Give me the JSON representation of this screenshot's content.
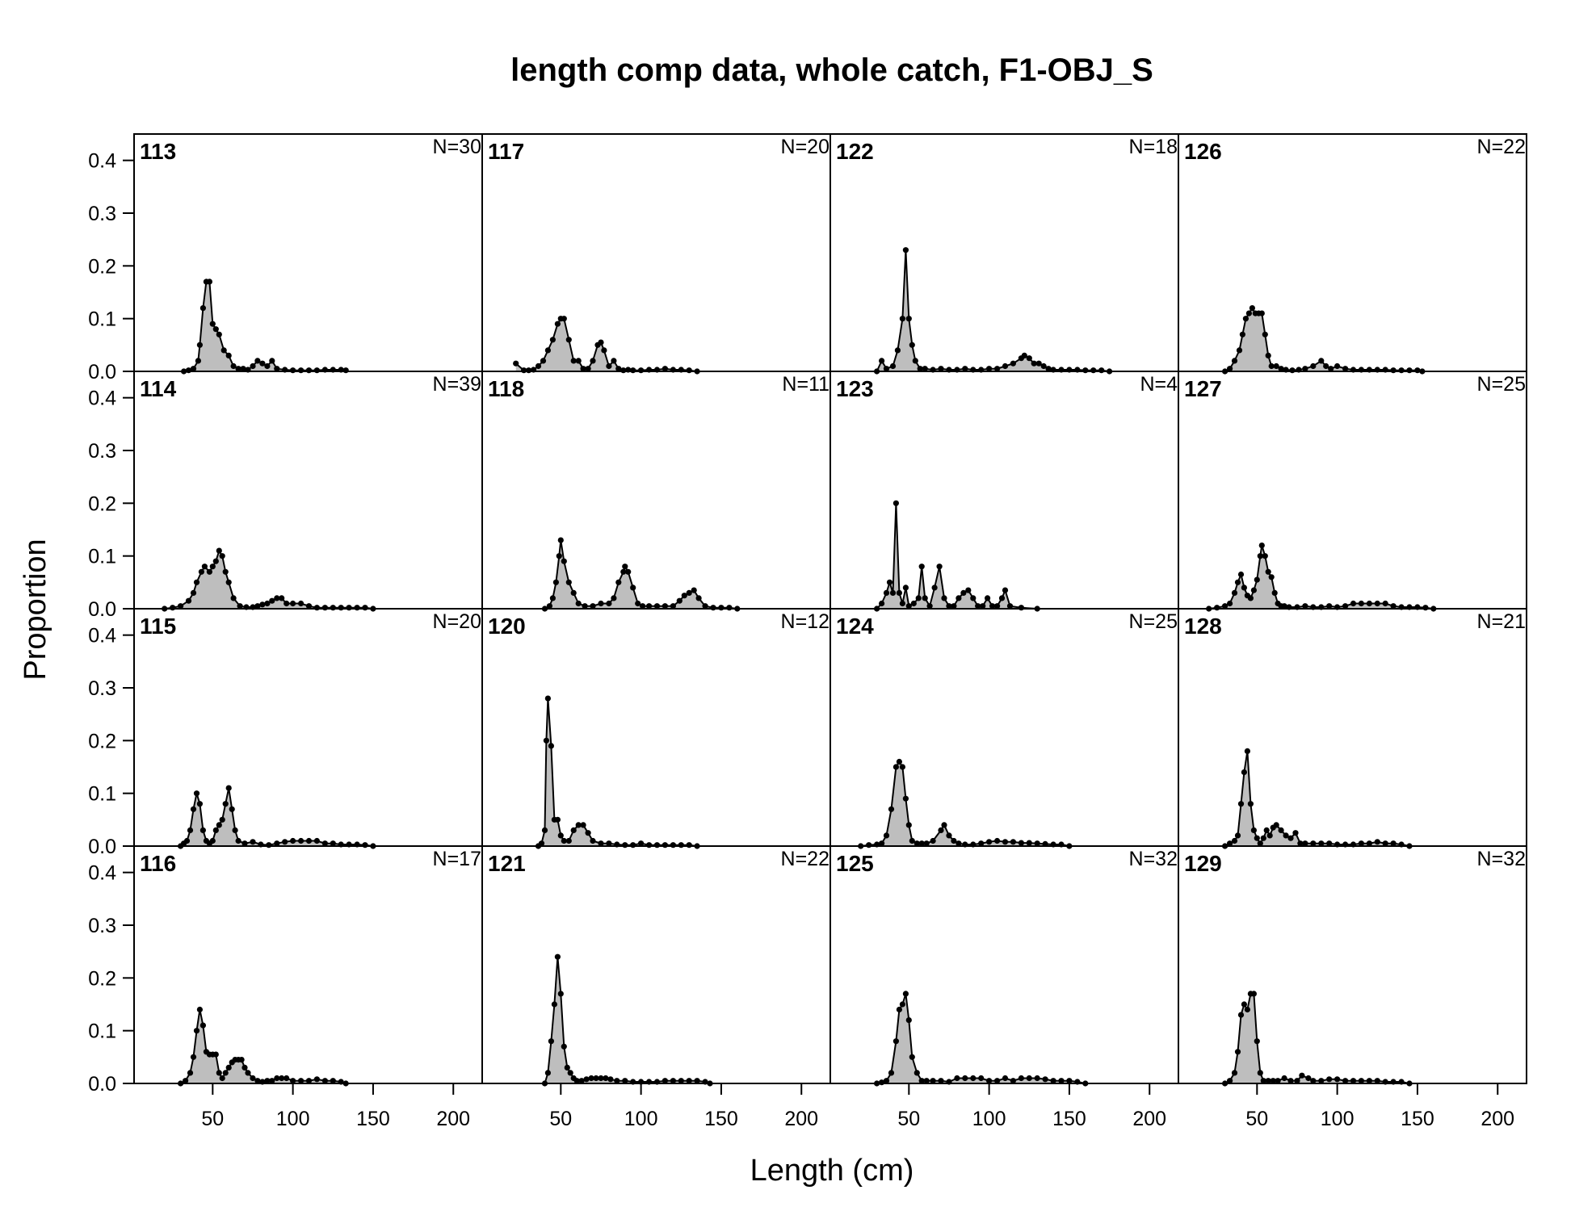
{
  "chart_data": {
    "type": "area",
    "title": "length comp data, whole catch, F1-OBJ_S",
    "xlabel": "Length (cm)",
    "ylabel": "Proportion",
    "xlim": [
      1,
      218
    ],
    "ylim": [
      0,
      0.45
    ],
    "x_ticks": [
      50,
      100,
      150,
      200
    ],
    "y_ticks": [
      0.0,
      0.1,
      0.2,
      0.3,
      0.4
    ],
    "y_tick_labels": [
      "0.0",
      "0.1",
      "0.2",
      "0.3",
      "0.4"
    ],
    "grid": false,
    "layout": "4 rows x 4 columns, panels filled column-wise",
    "colors": {
      "fill": "#bebebe",
      "line": "#000000",
      "points": "#000000"
    },
    "panels": [
      {
        "label": "113",
        "n_label": "N=30",
        "x": [
          32,
          35,
          38,
          41,
          42,
          44,
          46,
          48,
          50,
          52,
          54,
          57,
          60,
          63,
          66,
          69,
          72,
          75,
          78,
          81,
          84,
          87,
          90,
          95,
          100,
          105,
          110,
          115,
          120,
          125,
          130,
          133
        ],
        "y": [
          0,
          0.002,
          0.005,
          0.02,
          0.05,
          0.12,
          0.17,
          0.17,
          0.09,
          0.08,
          0.07,
          0.04,
          0.03,
          0.01,
          0.005,
          0.005,
          0.003,
          0.01,
          0.02,
          0.015,
          0.01,
          0.02,
          0.005,
          0.003,
          0.002,
          0.002,
          0.002,
          0.002,
          0.003,
          0.003,
          0.003,
          0.002
        ]
      },
      {
        "label": "114",
        "n_label": "N=39",
        "x": [
          20,
          25,
          30,
          35,
          38,
          40,
          43,
          45,
          48,
          50,
          52,
          54,
          56,
          58,
          60,
          63,
          67,
          71,
          75,
          78,
          81,
          84,
          87,
          90,
          93,
          96,
          100,
          105,
          110,
          115,
          120,
          125,
          130,
          135,
          140,
          145,
          150
        ],
        "y": [
          0,
          0.002,
          0.005,
          0.015,
          0.03,
          0.05,
          0.07,
          0.08,
          0.07,
          0.08,
          0.09,
          0.11,
          0.1,
          0.07,
          0.05,
          0.02,
          0.005,
          0.003,
          0.003,
          0.005,
          0.008,
          0.01,
          0.015,
          0.02,
          0.02,
          0.01,
          0.01,
          0.01,
          0.005,
          0.002,
          0.002,
          0.002,
          0.002,
          0.002,
          0.002,
          0.002,
          0
        ]
      },
      {
        "label": "115",
        "n_label": "N=20",
        "x": [
          30,
          32,
          34,
          36,
          38,
          40,
          42,
          44,
          46,
          48,
          50,
          52,
          54,
          56,
          58,
          60,
          62,
          64,
          66,
          70,
          75,
          80,
          85,
          90,
          95,
          100,
          105,
          110,
          115,
          120,
          125,
          130,
          135,
          140,
          145,
          150
        ],
        "y": [
          0,
          0.005,
          0.01,
          0.03,
          0.07,
          0.1,
          0.08,
          0.03,
          0.01,
          0.005,
          0.01,
          0.03,
          0.04,
          0.05,
          0.08,
          0.11,
          0.07,
          0.03,
          0.01,
          0.005,
          0.008,
          0.003,
          0.002,
          0.005,
          0.008,
          0.01,
          0.01,
          0.01,
          0.01,
          0.005,
          0.005,
          0.003,
          0.003,
          0.003,
          0.002,
          0
        ]
      },
      {
        "label": "116",
        "n_label": "N=17",
        "x": [
          30,
          33,
          36,
          38,
          40,
          42,
          44,
          46,
          48,
          50,
          52,
          54,
          56,
          58,
          60,
          62,
          64,
          66,
          68,
          70,
          72,
          75,
          78,
          81,
          84,
          87,
          90,
          93,
          96,
          100,
          105,
          110,
          115,
          120,
          125,
          130,
          133
        ],
        "y": [
          0,
          0.005,
          0.02,
          0.05,
          0.1,
          0.14,
          0.11,
          0.06,
          0.055,
          0.055,
          0.055,
          0.02,
          0.01,
          0.02,
          0.03,
          0.04,
          0.045,
          0.045,
          0.045,
          0.03,
          0.02,
          0.01,
          0.005,
          0.003,
          0.005,
          0.005,
          0.01,
          0.01,
          0.01,
          0.005,
          0.005,
          0.005,
          0.008,
          0.005,
          0.005,
          0.003,
          0
        ]
      },
      {
        "label": "117",
        "n_label": "N=20",
        "x": [
          22,
          27,
          30,
          33,
          36,
          39,
          42,
          45,
          48,
          50,
          52,
          55,
          58,
          61,
          64,
          67,
          70,
          73,
          75,
          77,
          80,
          83,
          86,
          89,
          92,
          95,
          100,
          105,
          110,
          115,
          120,
          125,
          130,
          135
        ],
        "y": [
          0.015,
          0.002,
          0.002,
          0.003,
          0.01,
          0.02,
          0.04,
          0.06,
          0.09,
          0.1,
          0.1,
          0.06,
          0.02,
          0.02,
          0.005,
          0.005,
          0.02,
          0.05,
          0.055,
          0.04,
          0.01,
          0.02,
          0.005,
          0.002,
          0.003,
          0.002,
          0.002,
          0.003,
          0.003,
          0.005,
          0.003,
          0.003,
          0.002,
          0
        ]
      },
      {
        "label": "118",
        "n_label": "N=11",
        "x": [
          40,
          43,
          45,
          47,
          49,
          50,
          52,
          55,
          58,
          61,
          65,
          70,
          75,
          80,
          83,
          86,
          89,
          90,
          92,
          95,
          98,
          101,
          105,
          110,
          115,
          120,
          124,
          127,
          130,
          133,
          136,
          140,
          145,
          150,
          155,
          160
        ],
        "y": [
          0,
          0.005,
          0.02,
          0.05,
          0.1,
          0.13,
          0.09,
          0.05,
          0.03,
          0.01,
          0.005,
          0.005,
          0.01,
          0.01,
          0.02,
          0.05,
          0.07,
          0.08,
          0.07,
          0.04,
          0.01,
          0.005,
          0.005,
          0.005,
          0.005,
          0.005,
          0.015,
          0.025,
          0.03,
          0.035,
          0.02,
          0.005,
          0.002,
          0.002,
          0.002,
          0
        ]
      },
      {
        "label": "120",
        "n_label": "N=12",
        "x": [
          36,
          38,
          40,
          41,
          42,
          44,
          46,
          48,
          50,
          52,
          55,
          58,
          61,
          64,
          67,
          70,
          75,
          80,
          85,
          90,
          95,
          100,
          105,
          110,
          115,
          120,
          125,
          130,
          135
        ],
        "y": [
          0,
          0.005,
          0.03,
          0.2,
          0.28,
          0.19,
          0.05,
          0.05,
          0.02,
          0.01,
          0.01,
          0.03,
          0.04,
          0.04,
          0.025,
          0.01,
          0.005,
          0.005,
          0.003,
          0.002,
          0.002,
          0.005,
          0.002,
          0.002,
          0.002,
          0.002,
          0.002,
          0.002,
          0
        ]
      },
      {
        "label": "121",
        "n_label": "N=22",
        "x": [
          40,
          42,
          44,
          46,
          48,
          50,
          52,
          54,
          56,
          58,
          60,
          63,
          66,
          69,
          72,
          75,
          78,
          81,
          85,
          90,
          95,
          100,
          105,
          110,
          115,
          120,
          125,
          130,
          135,
          140,
          143
        ],
        "y": [
          0,
          0.02,
          0.08,
          0.15,
          0.24,
          0.17,
          0.07,
          0.03,
          0.02,
          0.01,
          0.005,
          0.005,
          0.008,
          0.01,
          0.01,
          0.01,
          0.01,
          0.008,
          0.005,
          0.005,
          0.003,
          0.003,
          0.003,
          0.003,
          0.005,
          0.005,
          0.005,
          0.005,
          0.005,
          0.003,
          0
        ]
      },
      {
        "label": "122",
        "n_label": "N=18",
        "x": [
          30,
          33,
          36,
          40,
          43,
          46,
          48,
          50,
          52,
          54,
          57,
          60,
          65,
          70,
          75,
          80,
          85,
          90,
          95,
          100,
          105,
          110,
          115,
          120,
          122,
          125,
          128,
          131,
          134,
          137,
          140,
          145,
          150,
          155,
          160,
          165,
          170,
          175
        ],
        "y": [
          0,
          0.02,
          0.005,
          0.01,
          0.04,
          0.1,
          0.23,
          0.1,
          0.05,
          0.02,
          0.005,
          0.005,
          0.003,
          0.005,
          0.003,
          0.003,
          0.005,
          0.003,
          0.003,
          0.005,
          0.005,
          0.01,
          0.015,
          0.025,
          0.03,
          0.025,
          0.015,
          0.015,
          0.01,
          0.005,
          0.003,
          0.003,
          0.003,
          0.003,
          0.002,
          0.002,
          0.002,
          0
        ]
      },
      {
        "label": "123",
        "n_label": "N=4",
        "x": [
          30,
          33,
          36,
          38,
          40,
          42,
          44,
          46,
          48,
          50,
          53,
          56,
          58,
          60,
          63,
          66,
          69,
          72,
          75,
          78,
          81,
          84,
          87,
          90,
          93,
          96,
          99,
          102,
          105,
          108,
          110,
          113,
          120,
          130
        ],
        "y": [
          0,
          0.01,
          0.03,
          0.05,
          0.03,
          0.2,
          0.03,
          0.01,
          0.04,
          0.005,
          0.01,
          0.02,
          0.08,
          0.02,
          0.005,
          0.04,
          0.08,
          0.02,
          0.005,
          0.005,
          0.02,
          0.03,
          0.035,
          0.02,
          0.005,
          0.005,
          0.02,
          0.005,
          0.005,
          0.02,
          0.035,
          0.005,
          0.002,
          0
        ]
      },
      {
        "label": "124",
        "n_label": "N=25",
        "x": [
          20,
          25,
          30,
          33,
          36,
          39,
          42,
          44,
          46,
          48,
          50,
          52,
          55,
          58,
          61,
          65,
          70,
          72,
          75,
          78,
          81,
          85,
          90,
          95,
          100,
          105,
          110,
          115,
          120,
          125,
          130,
          135,
          140,
          145,
          150
        ],
        "y": [
          0,
          0.002,
          0.003,
          0.005,
          0.02,
          0.07,
          0.15,
          0.16,
          0.15,
          0.09,
          0.04,
          0.01,
          0.005,
          0.005,
          0.005,
          0.01,
          0.03,
          0.04,
          0.02,
          0.01,
          0.005,
          0.003,
          0.003,
          0.005,
          0.008,
          0.01,
          0.008,
          0.008,
          0.006,
          0.006,
          0.005,
          0.004,
          0.003,
          0.003,
          0
        ]
      },
      {
        "label": "125",
        "n_label": "N=32",
        "x": [
          30,
          33,
          36,
          39,
          42,
          44,
          46,
          48,
          50,
          52,
          55,
          58,
          61,
          65,
          70,
          75,
          80,
          85,
          90,
          95,
          100,
          105,
          110,
          115,
          120,
          125,
          130,
          135,
          140,
          145,
          150,
          155,
          160
        ],
        "y": [
          0,
          0.002,
          0.005,
          0.02,
          0.08,
          0.14,
          0.15,
          0.17,
          0.12,
          0.05,
          0.02,
          0.005,
          0.005,
          0.005,
          0.005,
          0.003,
          0.01,
          0.01,
          0.01,
          0.01,
          0.005,
          0.005,
          0.01,
          0.005,
          0.01,
          0.01,
          0.01,
          0.008,
          0.005,
          0.005,
          0.005,
          0.003,
          0
        ]
      },
      {
        "label": "126",
        "n_label": "N=22",
        "x": [
          30,
          33,
          36,
          39,
          41,
          43,
          45,
          47,
          49,
          51,
          53,
          55,
          57,
          59,
          62,
          65,
          68,
          72,
          76,
          80,
          85,
          90,
          93,
          96,
          100,
          105,
          110,
          115,
          120,
          125,
          130,
          135,
          140,
          145,
          150,
          153
        ],
        "y": [
          0,
          0.005,
          0.02,
          0.04,
          0.07,
          0.1,
          0.11,
          0.12,
          0.11,
          0.11,
          0.11,
          0.07,
          0.03,
          0.01,
          0.01,
          0.005,
          0.003,
          0.002,
          0.003,
          0.005,
          0.01,
          0.02,
          0.01,
          0.005,
          0.01,
          0.005,
          0.003,
          0.003,
          0.003,
          0.003,
          0.003,
          0.002,
          0.002,
          0.002,
          0.002,
          0
        ]
      },
      {
        "label": "127",
        "n_label": "N=25",
        "x": [
          20,
          25,
          30,
          33,
          36,
          38,
          40,
          42,
          44,
          46,
          48,
          50,
          52,
          53,
          55,
          57,
          59,
          61,
          63,
          65,
          67,
          70,
          75,
          80,
          85,
          90,
          95,
          100,
          105,
          110,
          115,
          120,
          125,
          130,
          135,
          140,
          145,
          150,
          155,
          160
        ],
        "y": [
          0,
          0.002,
          0.005,
          0.01,
          0.03,
          0.05,
          0.065,
          0.04,
          0.025,
          0.02,
          0.035,
          0.055,
          0.1,
          0.12,
          0.1,
          0.07,
          0.06,
          0.03,
          0.01,
          0.005,
          0.005,
          0.003,
          0.003,
          0.005,
          0.003,
          0.003,
          0.005,
          0.003,
          0.005,
          0.01,
          0.01,
          0.01,
          0.01,
          0.01,
          0.005,
          0.003,
          0.003,
          0.003,
          0.002,
          0
        ]
      },
      {
        "label": "128",
        "n_label": "N=21",
        "x": [
          30,
          33,
          36,
          38,
          40,
          42,
          44,
          46,
          48,
          50,
          52,
          54,
          56,
          58,
          60,
          62,
          65,
          68,
          71,
          74,
          77,
          80,
          85,
          90,
          95,
          100,
          105,
          110,
          115,
          120,
          125,
          130,
          135,
          140,
          145
        ],
        "y": [
          0,
          0.005,
          0.01,
          0.02,
          0.08,
          0.14,
          0.18,
          0.08,
          0.03,
          0.015,
          0.005,
          0.015,
          0.03,
          0.02,
          0.035,
          0.04,
          0.03,
          0.02,
          0.015,
          0.025,
          0.005,
          0.005,
          0.005,
          0.005,
          0.005,
          0.003,
          0.003,
          0.003,
          0.005,
          0.005,
          0.008,
          0.005,
          0.005,
          0.003,
          0
        ]
      },
      {
        "label": "129",
        "n_label": "N=32",
        "x": [
          30,
          33,
          36,
          38,
          40,
          42,
          44,
          46,
          48,
          50,
          52,
          54,
          57,
          60,
          63,
          67,
          71,
          75,
          78,
          82,
          85,
          90,
          95,
          100,
          105,
          110,
          115,
          120,
          125,
          130,
          135,
          140,
          145
        ],
        "y": [
          0,
          0.005,
          0.02,
          0.06,
          0.13,
          0.15,
          0.14,
          0.17,
          0.17,
          0.08,
          0.02,
          0.005,
          0.005,
          0.005,
          0.005,
          0.01,
          0.005,
          0.005,
          0.015,
          0.01,
          0.005,
          0.005,
          0.008,
          0.008,
          0.005,
          0.005,
          0.005,
          0.005,
          0.005,
          0.003,
          0.003,
          0.003,
          0
        ]
      }
    ]
  }
}
